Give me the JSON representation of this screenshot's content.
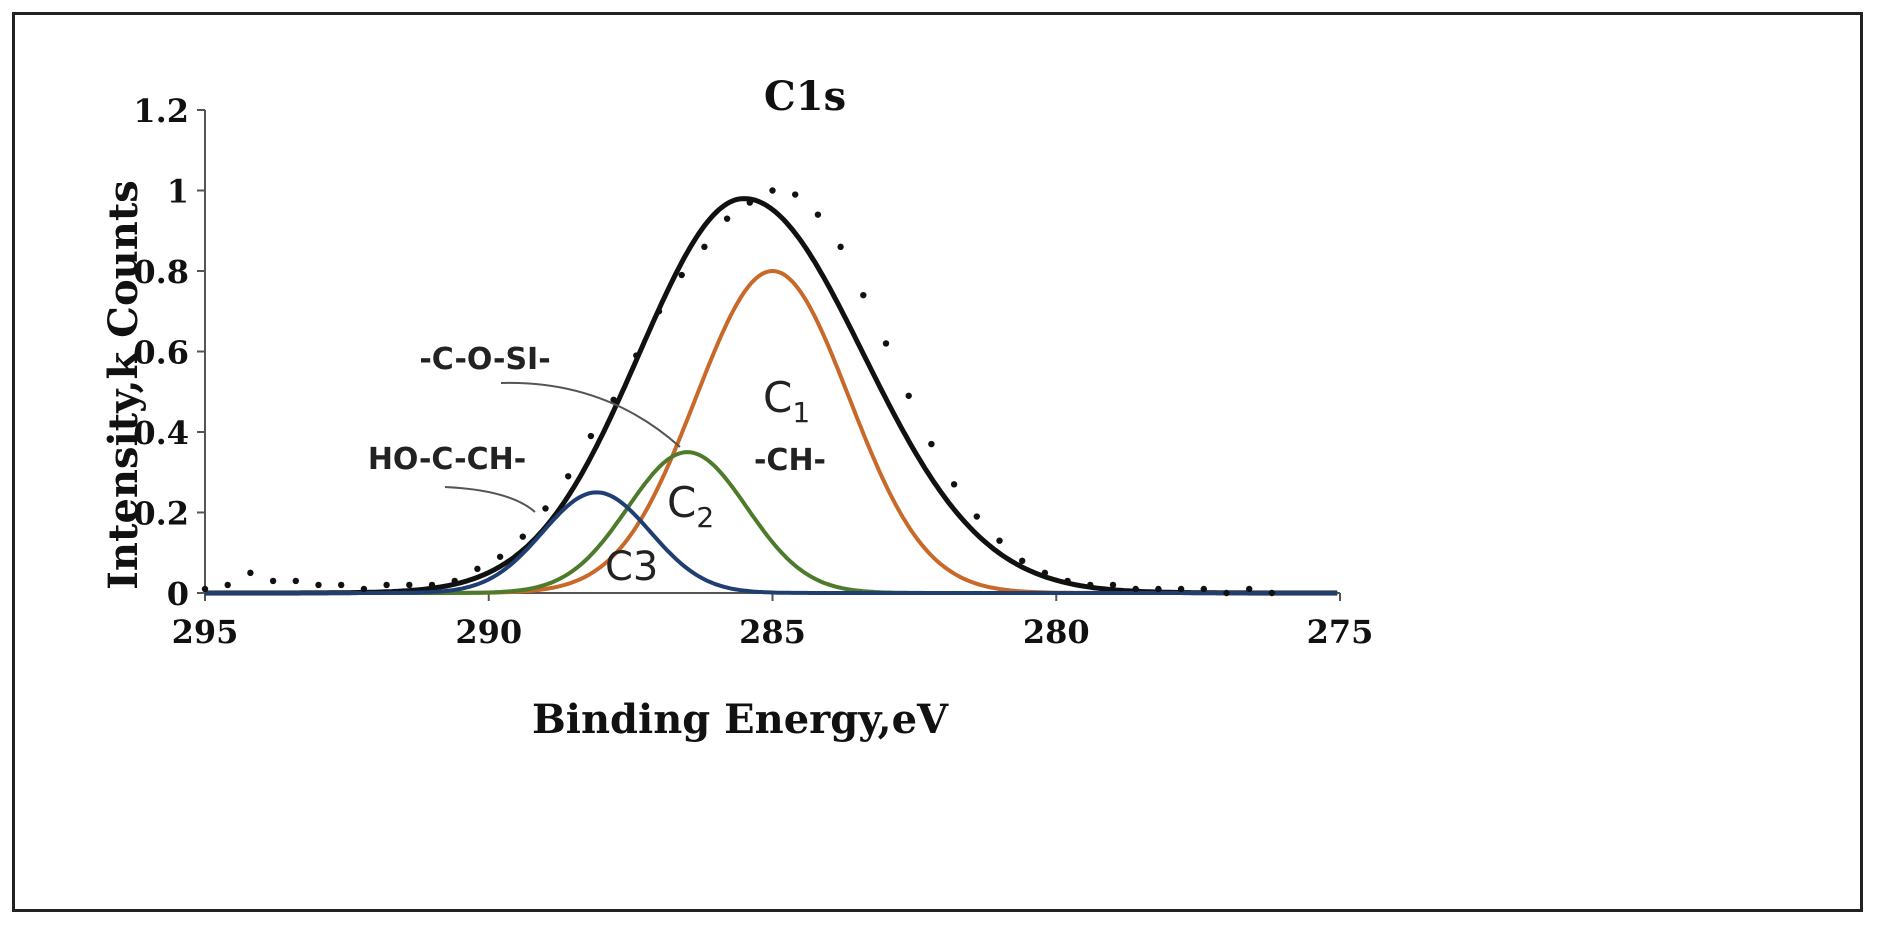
{
  "chart_data": {
    "type": "line",
    "title": "C1s",
    "xlabel": "Binding Energy,eV",
    "ylabel": "Intensity,k Counts",
    "xlim": [
      295,
      275
    ],
    "ylim": [
      0,
      1.2
    ],
    "x_ticks": [
      "295",
      "290",
      "285",
      "280",
      "275"
    ],
    "y_ticks": [
      "0",
      "0.2",
      "0.4",
      "0.6",
      "0.8",
      "1",
      "1.2"
    ],
    "x_tick_values": [
      295,
      290,
      285,
      280,
      275
    ],
    "y_tick_values": [
      0,
      0.2,
      0.4,
      0.6,
      0.8,
      1.0,
      1.2
    ],
    "grid": false,
    "series": [
      {
        "color": "#111111",
        "style": "dotted-markers",
        "x": [
          295,
          294.6,
          294.2,
          293.8,
          293.4,
          293.0,
          292.6,
          292.2,
          291.8,
          291.4,
          291.0,
          290.6,
          290.2,
          289.8,
          289.4,
          289.0,
          288.6,
          288.2,
          287.8,
          287.4,
          287.0,
          286.6,
          286.2,
          285.8,
          285.4,
          285.0,
          284.6,
          284.2,
          283.8,
          283.4,
          283.0,
          282.6,
          282.2,
          281.8,
          281.4,
          281.0,
          280.6,
          280.2,
          279.8,
          279.4,
          279.0,
          278.6,
          278.2,
          277.8,
          277.4,
          277.0,
          276.6,
          276.2
        ],
        "y": [
          0.01,
          0.02,
          0.05,
          0.03,
          0.03,
          0.02,
          0.02,
          0.01,
          0.02,
          0.02,
          0.02,
          0.03,
          0.06,
          0.09,
          0.14,
          0.21,
          0.29,
          0.39,
          0.48,
          0.59,
          0.7,
          0.79,
          0.86,
          0.93,
          0.97,
          1.0,
          0.99,
          0.94,
          0.86,
          0.74,
          0.62,
          0.49,
          0.37,
          0.27,
          0.19,
          0.13,
          0.08,
          0.05,
          0.03,
          0.02,
          0.02,
          0.01,
          0.01,
          0.01,
          0.01,
          0.0,
          0.01,
          0.0
        ]
      },
      {
        "color": "#111111",
        "style": "fit-envelope",
        "peak_center": 285.5,
        "peak_height": 0.98
      },
      {
        "name": "C1",
        "color": "#c8692a",
        "peak_center": 285.0,
        "peak_height": 0.8
      },
      {
        "name": "C2",
        "color": "#4e7a2c",
        "peak_center": 286.5,
        "peak_height": 0.35
      },
      {
        "name": "C3",
        "color": "#1f3f73",
        "peak_center": 288.1,
        "peak_height": 0.25
      }
    ],
    "annotations": [
      {
        "text": "-C-O-SI-",
        "target": "C2"
      },
      {
        "text": "HO-C-CH-",
        "target": "C3"
      },
      {
        "text": "-CH-",
        "target": "C2"
      },
      {
        "text": "C",
        "sub": "1"
      },
      {
        "text": "C",
        "sub": "2"
      },
      {
        "text": "C3"
      }
    ]
  }
}
